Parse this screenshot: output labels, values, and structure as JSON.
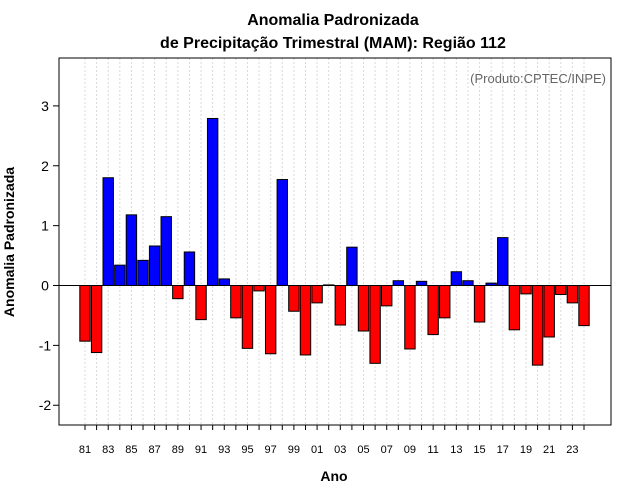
{
  "chart_data": {
    "type": "bar",
    "title": "Anomalia Padronizada",
    "subtitle": "de Precipitação Trimestral (MAM): Região 112",
    "annotation": "(Produto:CPTEC/INPE)",
    "xlabel": "Ano",
    "ylabel": "Anomalia Padronizada",
    "ylim": [
      -2.33,
      3.8
    ],
    "yticks": [
      -2,
      -1,
      0,
      1,
      2,
      3
    ],
    "grid": "vertical dotted",
    "x_tick_labels": [
      "81",
      "83",
      "85",
      "87",
      "89",
      "91",
      "93",
      "95",
      "97",
      "99",
      "01",
      "03",
      "05",
      "07",
      "09",
      "11",
      "13",
      "15",
      "17",
      "19",
      "21",
      "23"
    ],
    "categories": [
      "1981",
      "1982",
      "1983",
      "1984",
      "1985",
      "1986",
      "1987",
      "1988",
      "1989",
      "1990",
      "1991",
      "1992",
      "1993",
      "1994",
      "1995",
      "1996",
      "1997",
      "1998",
      "1999",
      "2000",
      "2001",
      "2002",
      "2003",
      "2004",
      "2005",
      "2006",
      "2007",
      "2008",
      "2009",
      "2010",
      "2011",
      "2012",
      "2013",
      "2014",
      "2015",
      "2016",
      "2017",
      "2018",
      "2019",
      "2020",
      "2021",
      "2022",
      "2023",
      "2024"
    ],
    "values": [
      -0.93,
      -1.12,
      1.8,
      0.34,
      1.18,
      0.42,
      0.66,
      1.15,
      -0.22,
      0.56,
      -0.57,
      2.79,
      0.11,
      -0.54,
      -1.05,
      -0.09,
      -1.14,
      1.77,
      -0.43,
      -1.16,
      -0.29,
      0.01,
      -0.66,
      0.64,
      -0.76,
      -1.3,
      -0.34,
      0.08,
      -1.06,
      0.07,
      -0.82,
      -0.54,
      0.23,
      0.08,
      -0.61,
      0.04,
      0.8,
      -0.74,
      -0.14,
      -1.33,
      -0.86,
      -0.15,
      -0.29,
      -0.67
    ],
    "colors": {
      "positive": "#0000ff",
      "negative": "#ff0000"
    }
  }
}
